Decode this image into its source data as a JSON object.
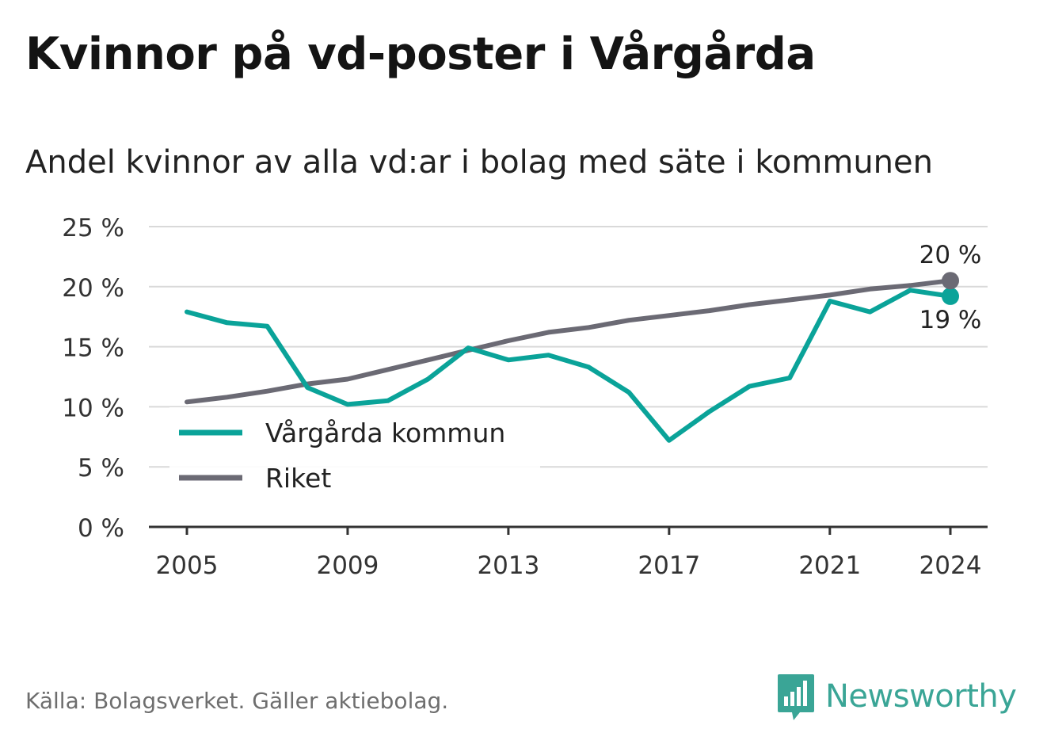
{
  "header": {
    "title": "Kvinnor på vd-poster i Vårgårda",
    "subtitle": "Andel kvinnor av alla vd:ar i bolag med säte i kommunen"
  },
  "footer": {
    "source": "Källa: Bolagsverket. Gäller aktiebolag.",
    "brand": "Newsworthy",
    "brand_icon": "bar-chart-speech-bubble-icon"
  },
  "chart_data": {
    "type": "line",
    "x": [
      2005,
      2006,
      2007,
      2008,
      2009,
      2010,
      2011,
      2012,
      2013,
      2014,
      2015,
      2016,
      2017,
      2018,
      2019,
      2020,
      2021,
      2022,
      2023,
      2024
    ],
    "xticks": [
      "2005",
      "2009",
      "2013",
      "2017",
      "2021",
      "2024"
    ],
    "yticks": [
      "0 %",
      "5 %",
      "10 %",
      "15 %",
      "20 %",
      "25 %"
    ],
    "ylim": [
      0,
      25
    ],
    "grid": true,
    "legend_position": "lower-left",
    "series": [
      {
        "name": "Vårgårda kommun",
        "color": "#0aa399",
        "values": [
          17.9,
          17.0,
          16.7,
          11.6,
          10.2,
          10.5,
          12.3,
          14.9,
          13.9,
          14.3,
          13.3,
          11.2,
          7.2,
          9.6,
          11.7,
          12.4,
          18.8,
          17.9,
          19.7,
          19.2
        ],
        "end_label": "19 %"
      },
      {
        "name": "Riket",
        "color": "#6b6a74",
        "values": [
          10.4,
          10.8,
          11.3,
          11.9,
          12.3,
          13.1,
          13.9,
          14.7,
          15.5,
          16.2,
          16.6,
          17.2,
          17.6,
          18.0,
          18.5,
          18.9,
          19.3,
          19.8,
          20.1,
          20.5
        ],
        "end_label": "20 %"
      }
    ]
  }
}
